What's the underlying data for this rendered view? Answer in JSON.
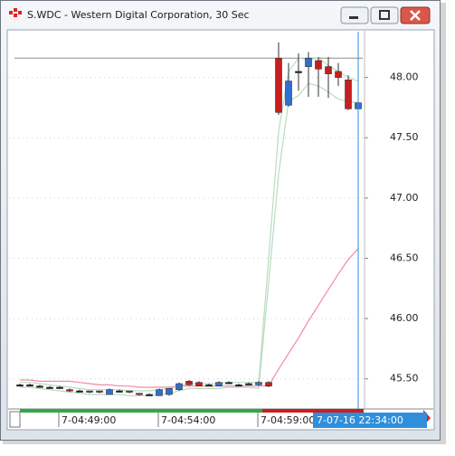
{
  "window": {
    "title": "S.WDC - Western Digital Corporation, 30 Sec"
  },
  "chart_data": {
    "type": "candlestick",
    "categories": [
      null,
      null,
      null,
      null,
      "7-04:49:00",
      null,
      null,
      null,
      null,
      null,
      null,
      null,
      null,
      null,
      "7-04:54:00",
      null,
      null,
      null,
      null,
      null,
      null,
      null,
      null,
      null,
      "7-04:59:00",
      null,
      null,
      null,
      null,
      null,
      null,
      null,
      null,
      null,
      "7-07-16 22:34:00"
    ],
    "open": [
      45.45,
      45.45,
      45.44,
      45.43,
      45.43,
      45.41,
      45.4,
      45.4,
      45.4,
      45.37,
      45.4,
      45.4,
      45.38,
      45.37,
      45.36,
      45.37,
      45.41,
      45.48,
      45.47,
      45.45,
      45.44,
      45.47,
      45.45,
      45.46,
      45.45,
      45.47,
      48.16,
      47.77,
      48.05,
      48.09,
      48.14,
      48.09,
      48.05,
      47.98,
      47.74
    ],
    "high": [
      45.46,
      45.46,
      45.45,
      45.44,
      45.44,
      45.42,
      45.41,
      45.4,
      45.4,
      45.42,
      45.41,
      45.4,
      45.38,
      45.38,
      45.42,
      45.42,
      45.47,
      45.49,
      45.48,
      45.46,
      45.48,
      45.48,
      45.46,
      45.47,
      45.48,
      45.48,
      48.29,
      48.12,
      48.2,
      48.21,
      48.17,
      48.17,
      48.12,
      48.02,
      47.83
    ],
    "low": [
      45.44,
      45.44,
      45.43,
      45.42,
      45.42,
      45.39,
      45.39,
      45.38,
      45.38,
      45.37,
      45.39,
      45.38,
      45.36,
      45.36,
      45.36,
      45.36,
      45.4,
      45.44,
      45.44,
      45.44,
      45.44,
      45.46,
      45.44,
      45.45,
      45.44,
      45.43,
      47.69,
      47.76,
      47.89,
      47.84,
      47.84,
      47.83,
      47.93,
      47.73,
      47.73
    ],
    "close": [
      45.45,
      45.45,
      45.44,
      45.43,
      45.43,
      45.4,
      45.4,
      45.39,
      45.39,
      45.41,
      45.4,
      45.39,
      45.37,
      45.37,
      45.41,
      45.42,
      45.46,
      45.45,
      45.44,
      45.45,
      45.47,
      45.47,
      45.45,
      45.46,
      45.47,
      45.44,
      47.71,
      47.97,
      48.05,
      48.16,
      48.07,
      48.03,
      48.0,
      47.74,
      47.79
    ],
    "up_color": "#2f6fcf",
    "down_color": "#c81e1e",
    "doji_color": "#222222",
    "series": [
      {
        "color": "#f08aa8",
        "values": [
          45.49,
          45.49,
          45.48,
          45.48,
          45.48,
          45.48,
          45.47,
          45.46,
          45.45,
          45.45,
          45.44,
          45.44,
          45.43,
          45.43,
          45.43,
          45.43,
          45.44,
          45.44,
          45.44,
          45.44,
          45.44,
          45.44,
          45.44,
          45.44,
          45.44,
          45.44,
          45.58,
          45.71,
          45.84,
          45.98,
          46.11,
          46.24,
          46.37,
          46.49,
          46.58
        ]
      },
      {
        "color": "#b9dcc0",
        "values": [
          45.47,
          45.47,
          45.46,
          45.45,
          45.44,
          45.43,
          45.42,
          45.41,
          45.41,
          45.41,
          45.41,
          45.4,
          45.4,
          45.4,
          45.41,
          45.42,
          45.44,
          45.46,
          45.46,
          45.46,
          45.46,
          45.47,
          45.47,
          45.47,
          45.47,
          46.5,
          47.55,
          48.05,
          48.16,
          48.15,
          48.16,
          48.1,
          48.05,
          48.0,
          47.97
        ]
      },
      {
        "color": "#b9dcc0",
        "values": [
          45.43,
          45.43,
          45.42,
          45.41,
          45.4,
          45.39,
          45.38,
          45.37,
          45.37,
          45.37,
          45.37,
          45.36,
          45.36,
          45.36,
          45.37,
          45.38,
          45.4,
          45.42,
          45.42,
          45.42,
          45.42,
          45.43,
          45.43,
          45.43,
          45.42,
          46.3,
          47.2,
          47.8,
          47.85,
          47.95,
          47.93,
          47.88,
          47.82,
          47.8,
          47.79
        ]
      }
    ],
    "hline": 48.16,
    "ylim": [
      45.25,
      48.38
    ],
    "yticks": [
      {
        "value": 45.5,
        "label": "45.50"
      },
      {
        "value": 46,
        "label": "46.00"
      },
      {
        "value": 46.5,
        "label": "46.50"
      },
      {
        "value": 47,
        "label": "47.00"
      },
      {
        "value": 47.5,
        "label": "47.50"
      },
      {
        "value": 48,
        "label": "48.00"
      }
    ],
    "grid": true
  }
}
